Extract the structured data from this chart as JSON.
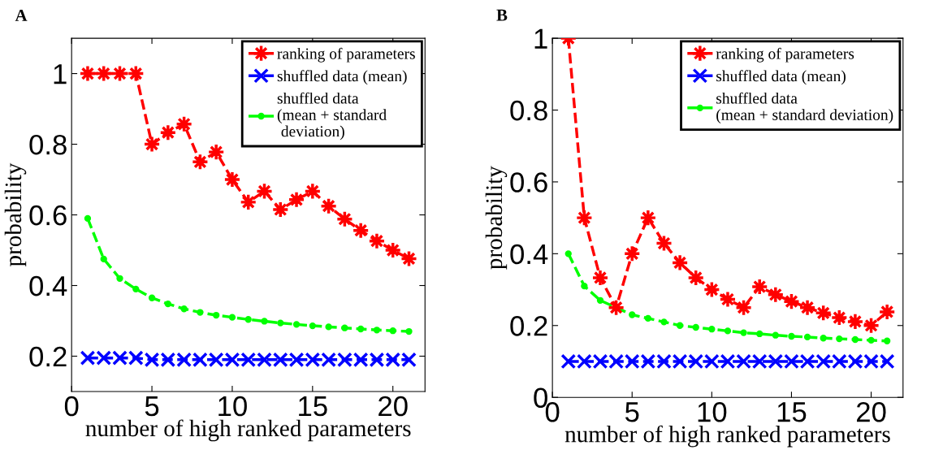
{
  "chart_data": [
    {
      "type": "line",
      "title": "A",
      "xlabel": "number of high ranked parameters",
      "ylabel": "probability",
      "xlim": [
        0,
        22
      ],
      "ylim": [
        0.1,
        1.1
      ],
      "xticks": [
        0,
        5,
        10,
        15,
        20
      ],
      "yticks": [
        0.2,
        0.4,
        0.6,
        0.8,
        1
      ],
      "grid": false,
      "legend": "top right",
      "line_style": "dashed",
      "x": [
        1,
        2,
        3,
        4,
        5,
        6,
        7,
        8,
        9,
        10,
        11,
        12,
        13,
        14,
        15,
        16,
        17,
        18,
        19,
        20,
        21
      ],
      "series": [
        {
          "name": "ranking of parameters",
          "color": "#ff0000",
          "marker": "star",
          "values": [
            1,
            1,
            1,
            1,
            0.8,
            0.833,
            0.857,
            0.75,
            0.778,
            0.7,
            0.636,
            0.667,
            0.615,
            0.643,
            0.667,
            0.625,
            0.588,
            0.556,
            0.526,
            0.5,
            0.476
          ]
        },
        {
          "name": "shuffled data (mean)",
          "color": "#0000ff",
          "marker": "cross",
          "values": [
            0.195,
            0.195,
            0.195,
            0.195,
            0.19,
            0.19,
            0.19,
            0.19,
            0.19,
            0.19,
            0.19,
            0.19,
            0.19,
            0.19,
            0.19,
            0.19,
            0.19,
            0.19,
            0.19,
            0.19,
            0.19
          ]
        },
        {
          "name": "shuffled data\n(mean + standard\n deviation)",
          "color": "#00ff00",
          "marker": "circle",
          "values": [
            0.59,
            0.475,
            0.42,
            0.39,
            0.365,
            0.348,
            0.334,
            0.324,
            0.316,
            0.31,
            0.304,
            0.299,
            0.294,
            0.29,
            0.286,
            0.283,
            0.28,
            0.277,
            0.274,
            0.272,
            0.27
          ]
        }
      ]
    },
    {
      "type": "line",
      "title": "B",
      "xlabel": "number of high ranked parameters",
      "ylabel": "probability",
      "xlim": [
        0,
        22
      ],
      "ylim": [
        0,
        1
      ],
      "xticks": [
        0,
        5,
        10,
        15,
        20
      ],
      "yticks": [
        0,
        0.2,
        0.4,
        0.6,
        0.8,
        1
      ],
      "grid": false,
      "legend": "top right",
      "line_style": "dashed",
      "x": [
        1,
        2,
        3,
        4,
        5,
        6,
        7,
        8,
        9,
        10,
        11,
        12,
        13,
        14,
        15,
        16,
        17,
        18,
        19,
        20,
        21
      ],
      "series": [
        {
          "name": "ranking of parameters",
          "color": "#ff0000",
          "marker": "star",
          "values": [
            1,
            0.5,
            0.333,
            0.25,
            0.4,
            0.5,
            0.429,
            0.375,
            0.333,
            0.3,
            0.273,
            0.25,
            0.308,
            0.286,
            0.267,
            0.25,
            0.235,
            0.222,
            0.211,
            0.2,
            0.238
          ]
        },
        {
          "name": "shuffled data (mean)",
          "color": "#0000ff",
          "marker": "cross",
          "values": [
            0.1,
            0.1,
            0.1,
            0.1,
            0.1,
            0.1,
            0.1,
            0.1,
            0.1,
            0.1,
            0.1,
            0.1,
            0.1,
            0.1,
            0.1,
            0.1,
            0.1,
            0.1,
            0.1,
            0.1,
            0.1
          ]
        },
        {
          "name": "shuffled data\n(mean + standard deviation)",
          "color": "#00ff00",
          "marker": "circle",
          "values": [
            0.4,
            0.31,
            0.27,
            0.25,
            0.23,
            0.22,
            0.21,
            0.2,
            0.195,
            0.19,
            0.185,
            0.18,
            0.177,
            0.173,
            0.17,
            0.168,
            0.165,
            0.163,
            0.161,
            0.159,
            0.157
          ]
        }
      ]
    }
  ]
}
